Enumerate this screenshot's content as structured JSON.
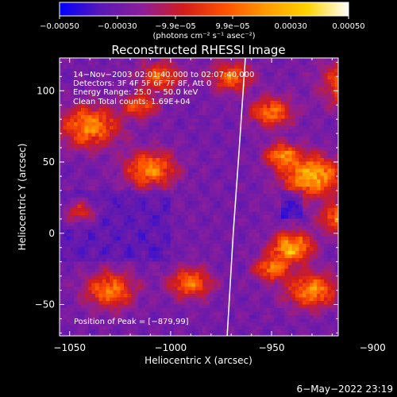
{
  "chart_data": {
    "type": "heatmap",
    "title": "Reconstructed RHESSI Image",
    "xlabel": "Heliocentric X (arcsec)",
    "ylabel": "Heliocentric Y (arcsec)",
    "xlim": [
      -1055,
      -917
    ],
    "ylim": [
      -72,
      123
    ],
    "x_ticks": [
      {
        "value": -1050,
        "label": "−1050"
      },
      {
        "value": -1000,
        "label": "−1000"
      },
      {
        "value": -950,
        "label": "−950"
      },
      {
        "value": -900,
        "label": "−900"
      }
    ],
    "y_ticks": [
      {
        "value": -50,
        "label": "−50"
      },
      {
        "value": 0,
        "label": "0"
      },
      {
        "value": 50,
        "label": "50"
      },
      {
        "value": 100,
        "label": "100"
      }
    ],
    "colorbar": {
      "range": [
        -0.0005,
        0.0005
      ],
      "ticks": [
        {
          "value": -0.0005,
          "label": "−0.00050"
        },
        {
          "value": -0.0003,
          "label": "−0.00030"
        },
        {
          "value": -9.9e-05,
          "label": "−9.9e−05"
        },
        {
          "value": 9.9e-05,
          "label": "9.9e−05"
        },
        {
          "value": 0.0003,
          "label": "0.00030"
        },
        {
          "value": 0.0005,
          "label": "0.00050"
        }
      ],
      "unit_label": "(photons cm⁻² s⁻¹ asec⁻²)",
      "colors": [
        "#0000ff",
        "#5a18b4",
        "#8c1e9a",
        "#d21c1c",
        "#ff5000",
        "#ff9a00",
        "#ffd400",
        "#ffffff"
      ]
    },
    "annotations": [
      "14−Nov−2003 02:01:40.000 to 02:07:40.000",
      "Detectors: 3F 4F 5F 6F 7F 8F, Att 0",
      "Energy Range: 25.0 − 50.0 keV",
      "Clean    Total counts: 1.69E+04",
      "Position of Peak = [−879,99]"
    ],
    "peak": {
      "x": -879,
      "y": 99
    },
    "limb": [
      [
        -972,
        -72
      ],
      [
        -969,
        0
      ],
      [
        -966,
        60
      ],
      [
        -963,
        123
      ]
    ],
    "grid": false,
    "legend": "none",
    "timestamp": "6−May−2022 23:19"
  }
}
